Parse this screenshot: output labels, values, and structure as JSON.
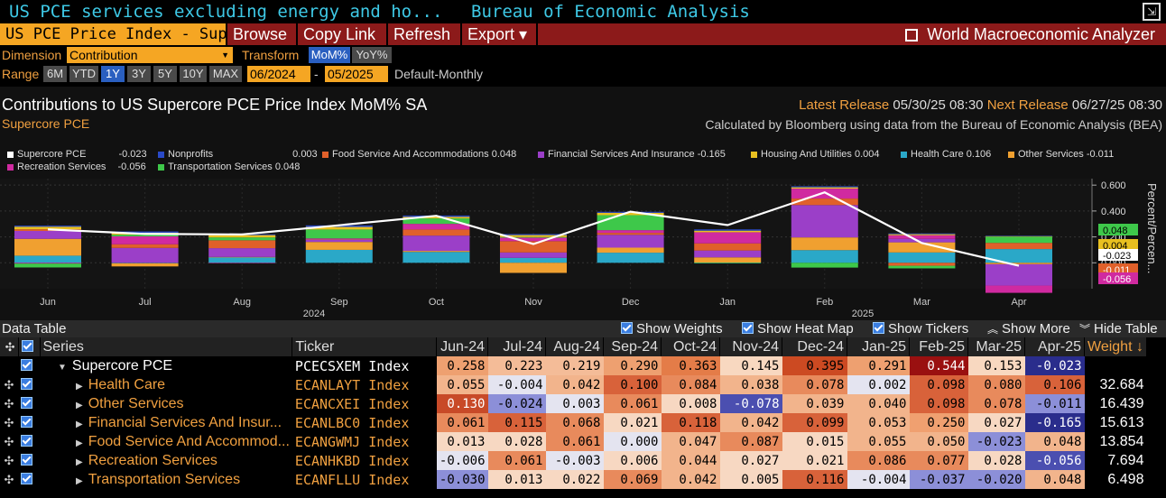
{
  "titlebar": {
    "left": "US PCE services excluding energy and ho...",
    "right": "Bureau of Economic Analysis"
  },
  "menu": {
    "security": "US PCE Price Index - Supe",
    "browse": "Browse",
    "copy_link": "Copy Link",
    "refresh": "Refresh",
    "export": "Export ▾",
    "app": "World Macroeconomic Analyzer"
  },
  "controls": {
    "dimension_label": "Dimension",
    "dimension_value": "Contribution",
    "transform_label": "Transform",
    "transform_options": [
      "MoM%",
      "YoY%"
    ],
    "transform_selected": "MoM%",
    "range_label": "Range",
    "range_options": [
      "6M",
      "YTD",
      "1Y",
      "3Y",
      "5Y",
      "10Y",
      "MAX"
    ],
    "range_selected": "1Y",
    "start": "06/2024",
    "dash": "-",
    "end": "05/2025",
    "freq": "Default-Monthly"
  },
  "chart_header": {
    "title": "Contributions to US Supercore PCE Price Index MoM% SA",
    "subtitle": "Supercore PCE",
    "latest_label": "Latest Release",
    "latest_value": "05/30/25 08:30",
    "next_label": "Next Release",
    "next_value": "06/27/25 08:30",
    "calc_note": "Calculated by Bloomberg using data from the Bureau of Economic Analysis (BEA)"
  },
  "legend": [
    {
      "name": "Supercore PCE",
      "value": "-0.023",
      "color": "#ffffff"
    },
    {
      "name": "Nonprofits",
      "value": "0.003",
      "color": "#2a4ac8"
    },
    {
      "name": "Food Service And Accommodations",
      "value": "0.048",
      "color": "#e0602a"
    },
    {
      "name": "Financial Services And Insurance",
      "value": "-0.165",
      "color": "#9b3fc8"
    },
    {
      "name": "Housing And Utilities",
      "value": "0.004",
      "color": "#e8c020"
    },
    {
      "name": "Health Care",
      "value": "0.106",
      "color": "#2aa8c8"
    },
    {
      "name": "Other Services",
      "value": "-0.011",
      "color": "#f0a030"
    },
    {
      "name": "Recreation Services",
      "value": "-0.056",
      "color": "#d02aa0"
    },
    {
      "name": "Transportation Services",
      "value": "0.048",
      "color": "#3ec84a"
    }
  ],
  "chart_data": {
    "type": "bar",
    "stacked": true,
    "categories": [
      "Jun",
      "Jul",
      "Aug",
      "Sep",
      "Oct",
      "Nov",
      "Dec",
      "Jan",
      "Feb",
      "Mar",
      "Apr"
    ],
    "x_group_labels": [
      "2024",
      "2025"
    ],
    "ylabel": "Percent/Percen...",
    "ylim": [
      -0.2,
      0.65
    ],
    "yticks": [
      "0.600",
      "0.400",
      "0.200",
      "0.000"
    ],
    "series": [
      {
        "name": "Health Care",
        "color": "#2aa8c8",
        "values": [
          0.055,
          -0.004,
          0.042,
          0.1,
          0.084,
          0.038,
          0.078,
          0.002,
          0.098,
          0.08,
          0.106
        ]
      },
      {
        "name": "Other Services",
        "color": "#f0a030",
        "values": [
          0.13,
          -0.024,
          0.003,
          0.061,
          0.008,
          -0.078,
          0.039,
          0.04,
          0.098,
          0.078,
          -0.011
        ]
      },
      {
        "name": "Financial Services And Insurance",
        "color": "#9b3fc8",
        "values": [
          0.061,
          0.115,
          0.068,
          0.021,
          0.118,
          0.042,
          0.099,
          0.053,
          0.25,
          0.027,
          -0.165
        ]
      },
      {
        "name": "Food Service And Accommodations",
        "color": "#e0602a",
        "values": [
          0.013,
          0.028,
          0.061,
          0.0,
          0.047,
          0.087,
          0.015,
          0.055,
          0.05,
          -0.023,
          0.048
        ]
      },
      {
        "name": "Recreation Services",
        "color": "#d02aa0",
        "values": [
          -0.006,
          0.061,
          -0.003,
          0.006,
          0.044,
          0.027,
          0.021,
          0.086,
          0.077,
          0.028,
          -0.056
        ]
      },
      {
        "name": "Transportation Services",
        "color": "#3ec84a",
        "values": [
          -0.03,
          0.013,
          0.022,
          0.069,
          0.042,
          0.005,
          0.116,
          -0.004,
          -0.037,
          -0.02,
          0.048
        ]
      },
      {
        "name": "Housing And Utilities",
        "color": "#e8c020",
        "values": [
          0.02,
          0.015,
          0.018,
          0.02,
          0.012,
          0.015,
          0.018,
          0.012,
          0.01,
          0.008,
          0.004
        ]
      },
      {
        "name": "Nonprofits",
        "color": "#2a4ac8",
        "values": [
          0.008,
          0.01,
          0.006,
          0.012,
          0.01,
          0.008,
          0.008,
          0.01,
          0.008,
          0.006,
          0.003
        ]
      }
    ],
    "line": {
      "name": "Supercore PCE",
      "color": "#ffffff",
      "values": [
        0.258,
        0.223,
        0.219,
        0.29,
        0.363,
        0.145,
        0.395,
        0.291,
        0.544,
        0.153,
        -0.023
      ]
    },
    "right_labels": [
      {
        "text": "0.048",
        "color": "#3ec84a",
        "value": 0.048
      },
      {
        "text": "0.004",
        "color": "#e8c020",
        "value": 0.004
      },
      {
        "text": "-0.023",
        "color": "#ffffff",
        "value": -0.023
      },
      {
        "text": "-0.011",
        "color": "#e0602a",
        "value": -0.011
      },
      {
        "text": "-0.056",
        "color": "#d02aa0",
        "value": -0.056
      }
    ]
  },
  "datatable": {
    "title": "Data Table",
    "toggles": [
      "Show Weights",
      "Show Heat Map",
      "Show Tickers"
    ],
    "show_more": "Show More",
    "hide_table": "Hide Table",
    "headers": {
      "series": "Series",
      "ticker": "Ticker",
      "weight": "Weight"
    },
    "months": [
      "Jun-24",
      "Jul-24",
      "Aug-24",
      "Sep-24",
      "Oct-24",
      "Nov-24",
      "Dec-24",
      "Jan-25",
      "Feb-25",
      "Mar-25",
      "Apr-25"
    ],
    "rows": [
      {
        "name": "Supercore PCE",
        "ticker": "PCECSXEM Index",
        "weight": "",
        "values": [
          "0.258",
          "0.223",
          "0.219",
          "0.290",
          "0.363",
          "0.145",
          "0.395",
          "0.291",
          "0.544",
          "0.153",
          "-0.023"
        ],
        "top": true
      },
      {
        "name": "Health Care",
        "ticker": "ECANLAYT Index",
        "weight": "32.684",
        "values": [
          "0.055",
          "-0.004",
          "0.042",
          "0.100",
          "0.084",
          "0.038",
          "0.078",
          "0.002",
          "0.098",
          "0.080",
          "0.106"
        ]
      },
      {
        "name": "Other Services",
        "ticker": "ECANCXEI Index",
        "weight": "16.439",
        "values": [
          "0.130",
          "-0.024",
          "0.003",
          "0.061",
          "0.008",
          "-0.078",
          "0.039",
          "0.040",
          "0.098",
          "0.078",
          "-0.011"
        ]
      },
      {
        "name": "Financial Services And Insur...",
        "ticker": "ECANLBC0 Index",
        "weight": "15.613",
        "values": [
          "0.061",
          "0.115",
          "0.068",
          "0.021",
          "0.118",
          "0.042",
          "0.099",
          "0.053",
          "0.250",
          "0.027",
          "-0.165"
        ]
      },
      {
        "name": "Food Service And Accommod...",
        "ticker": "ECANGWMJ Index",
        "weight": "13.854",
        "values": [
          "0.013",
          "0.028",
          "0.061",
          "0.000",
          "0.047",
          "0.087",
          "0.015",
          "0.055",
          "0.050",
          "-0.023",
          "0.048"
        ]
      },
      {
        "name": "Recreation Services",
        "ticker": "ECANHKBD Index",
        "weight": "7.694",
        "values": [
          "-0.006",
          "0.061",
          "-0.003",
          "0.006",
          "0.044",
          "0.027",
          "0.021",
          "0.086",
          "0.077",
          "0.028",
          "-0.056"
        ]
      },
      {
        "name": "Transportation Services",
        "ticker": "ECANFLLU Index",
        "weight": "6.498",
        "values": [
          "-0.030",
          "0.013",
          "0.022",
          "0.069",
          "0.042",
          "0.005",
          "0.116",
          "-0.004",
          "-0.037",
          "-0.020",
          "0.048"
        ]
      }
    ]
  }
}
